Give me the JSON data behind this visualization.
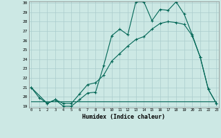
{
  "xlabel": "Humidex (Indice chaleur)",
  "bg_color": "#cce8e4",
  "grid_color": "#aacccc",
  "line_color": "#006655",
  "line1_x": [
    0,
    1,
    2,
    3,
    4,
    5,
    6,
    7,
    8,
    9,
    10,
    11,
    12,
    13,
    14,
    15,
    16,
    17,
    18,
    19,
    20,
    21,
    22,
    23
  ],
  "line1_y": [
    21,
    19.9,
    19.3,
    19.7,
    19.0,
    19.0,
    19.7,
    20.4,
    20.5,
    23.3,
    26.5,
    27.2,
    26.6,
    30.1,
    30.1,
    28.1,
    29.3,
    29.2,
    30.1,
    28.8,
    26.6,
    24.2,
    20.8,
    19.3
  ],
  "line2_x": [
    0,
    1,
    2,
    3,
    4,
    5,
    6,
    7,
    8,
    9,
    10,
    11,
    12,
    13,
    14,
    15,
    16,
    17,
    18,
    19,
    20,
    21,
    22,
    23
  ],
  "line2_y": [
    19.5,
    19.5,
    19.5,
    19.5,
    19.5,
    19.5,
    19.5,
    19.5,
    19.5,
    19.5,
    19.5,
    19.5,
    19.5,
    19.5,
    19.5,
    19.5,
    19.5,
    19.5,
    19.5,
    19.5,
    19.5,
    19.5,
    19.5,
    19.5
  ],
  "line3_x": [
    0,
    2,
    3,
    4,
    5,
    6,
    7,
    8,
    9,
    10,
    11,
    12,
    13,
    14,
    15,
    16,
    17,
    18,
    19,
    20,
    21,
    22,
    23
  ],
  "line3_y": [
    21,
    19.3,
    19.7,
    19.3,
    19.3,
    20.3,
    21.3,
    21.5,
    22.3,
    23.8,
    24.6,
    25.4,
    26.1,
    26.4,
    27.2,
    27.8,
    28.0,
    27.9,
    27.7,
    26.5,
    24.2,
    20.8,
    19.3
  ],
  "ylim": [
    19,
    30
  ],
  "xlim": [
    -0.3,
    23.3
  ],
  "yticks": [
    19,
    20,
    21,
    22,
    23,
    24,
    25,
    26,
    27,
    28,
    29,
    30
  ],
  "xticks": [
    0,
    1,
    2,
    3,
    4,
    5,
    6,
    7,
    8,
    9,
    10,
    11,
    12,
    13,
    14,
    15,
    16,
    17,
    18,
    19,
    20,
    21,
    22,
    23
  ]
}
